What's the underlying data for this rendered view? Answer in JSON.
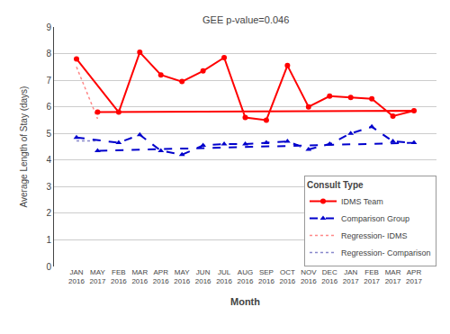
{
  "chart_data": {
    "type": "line",
    "annotation": "GEE p-value=0.046",
    "xlabel": "Month",
    "ylabel": "Average Length of Stay (days)",
    "legend_title": "Consult Type",
    "categories": [
      "JAN\n2016",
      "FEB\n2016",
      "MAR\n2016",
      "APR\n2016",
      "MAY\n2016",
      "JUN\n2016",
      "JUL\n2016",
      "AUG\n2016",
      "SEP\n2016",
      "OCT\n2016",
      "NOV\n2016",
      "DEC\n2016",
      "JAN\n2017",
      "FEB\n2017",
      "MAR\n2017",
      "APR\n2017",
      "MAY\n2017"
    ],
    "series": [
      {
        "name": "IDMS Team",
        "color": "#FF0000",
        "marker": "circle",
        "line_style": "solid",
        "values": [
          7.8,
          5.8,
          8.05,
          7.2,
          6.95,
          7.35,
          7.85,
          5.6,
          5.5,
          7.55,
          6.0,
          6.4,
          6.35,
          6.3,
          5.65,
          5.85,
          5.8
        ]
      },
      {
        "name": "Comparison Group",
        "color": "#0000CC",
        "marker": "triangle-up",
        "line_style": "dash",
        "values": [
          4.85,
          4.65,
          4.95,
          4.35,
          4.2,
          4.55,
          4.6,
          4.6,
          4.65,
          4.7,
          4.4,
          4.6,
          5.0,
          5.25,
          4.7,
          4.65,
          4.35
        ]
      },
      {
        "name": "Regression- IDMS",
        "color": "#FF8888",
        "line_style": "dot",
        "x": [
          "JAN\n2016",
          "MAY\n2017"
        ],
        "values": [
          7.5,
          5.55
        ]
      },
      {
        "name": "Regression- Comparison",
        "color": "#8888CC",
        "line_style": "dot",
        "x": [
          "JAN\n2016",
          "MAY\n2017"
        ],
        "values": [
          4.72,
          4.72
        ]
      }
    ],
    "ylim": [
      0,
      9
    ],
    "yticks": [
      0,
      1,
      2,
      3,
      4,
      5,
      6,
      7,
      8,
      9
    ],
    "grid": true,
    "legend": "lower right"
  }
}
